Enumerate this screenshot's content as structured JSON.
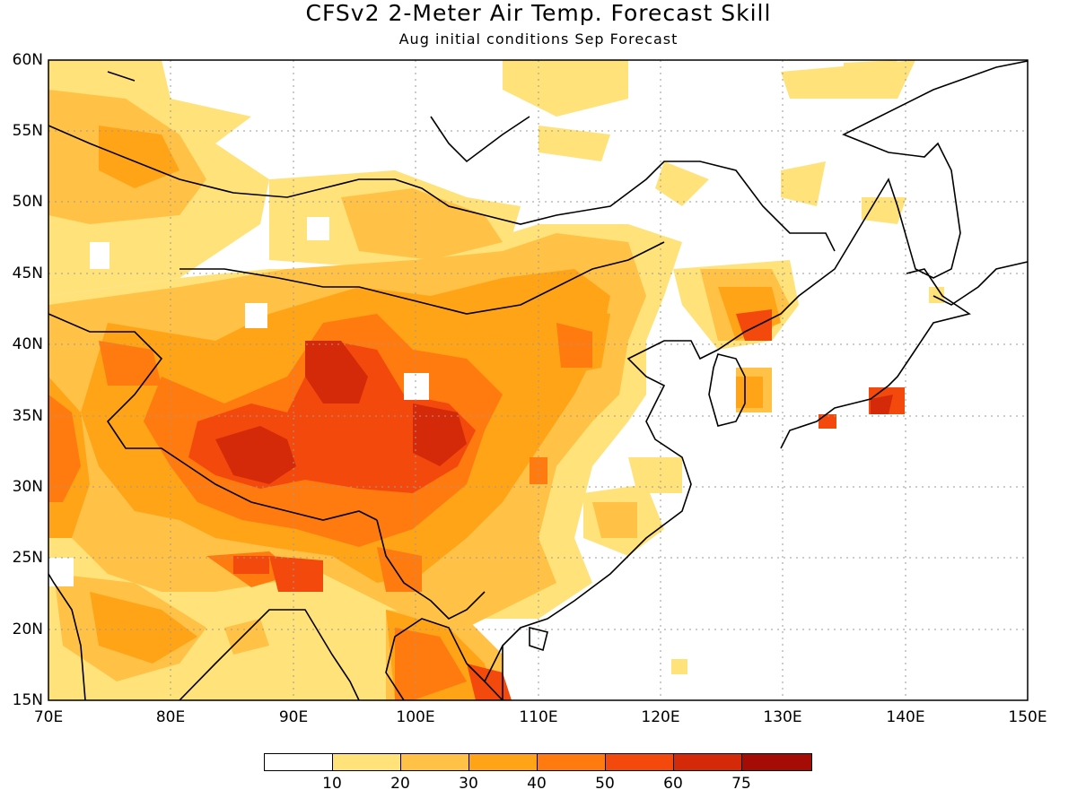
{
  "title": "CFSv2 2-Meter Air Temp. Forecast Skill",
  "subtitle": "Aug initial conditions  Sep Forecast",
  "map": {
    "lon_range": [
      70,
      150
    ],
    "lat_range": [
      15,
      60
    ],
    "x_ticks": [
      "70E",
      "80E",
      "90E",
      "100E",
      "110E",
      "120E",
      "130E",
      "140E",
      "150E"
    ],
    "y_ticks": [
      "15N",
      "20N",
      "25N",
      "30N",
      "35N",
      "40N",
      "45N",
      "50N",
      "55N",
      "60N"
    ],
    "grid": true,
    "coastlines": true
  },
  "colorbar": {
    "labels": [
      "10",
      "20",
      "30",
      "40",
      "50",
      "60",
      "75"
    ],
    "colors": [
      "#ffffff",
      "#ffe27a",
      "#ffc246",
      "#ffa417",
      "#ff7a0f",
      "#f4490c",
      "#d42a0a",
      "#a60c06"
    ]
  }
}
